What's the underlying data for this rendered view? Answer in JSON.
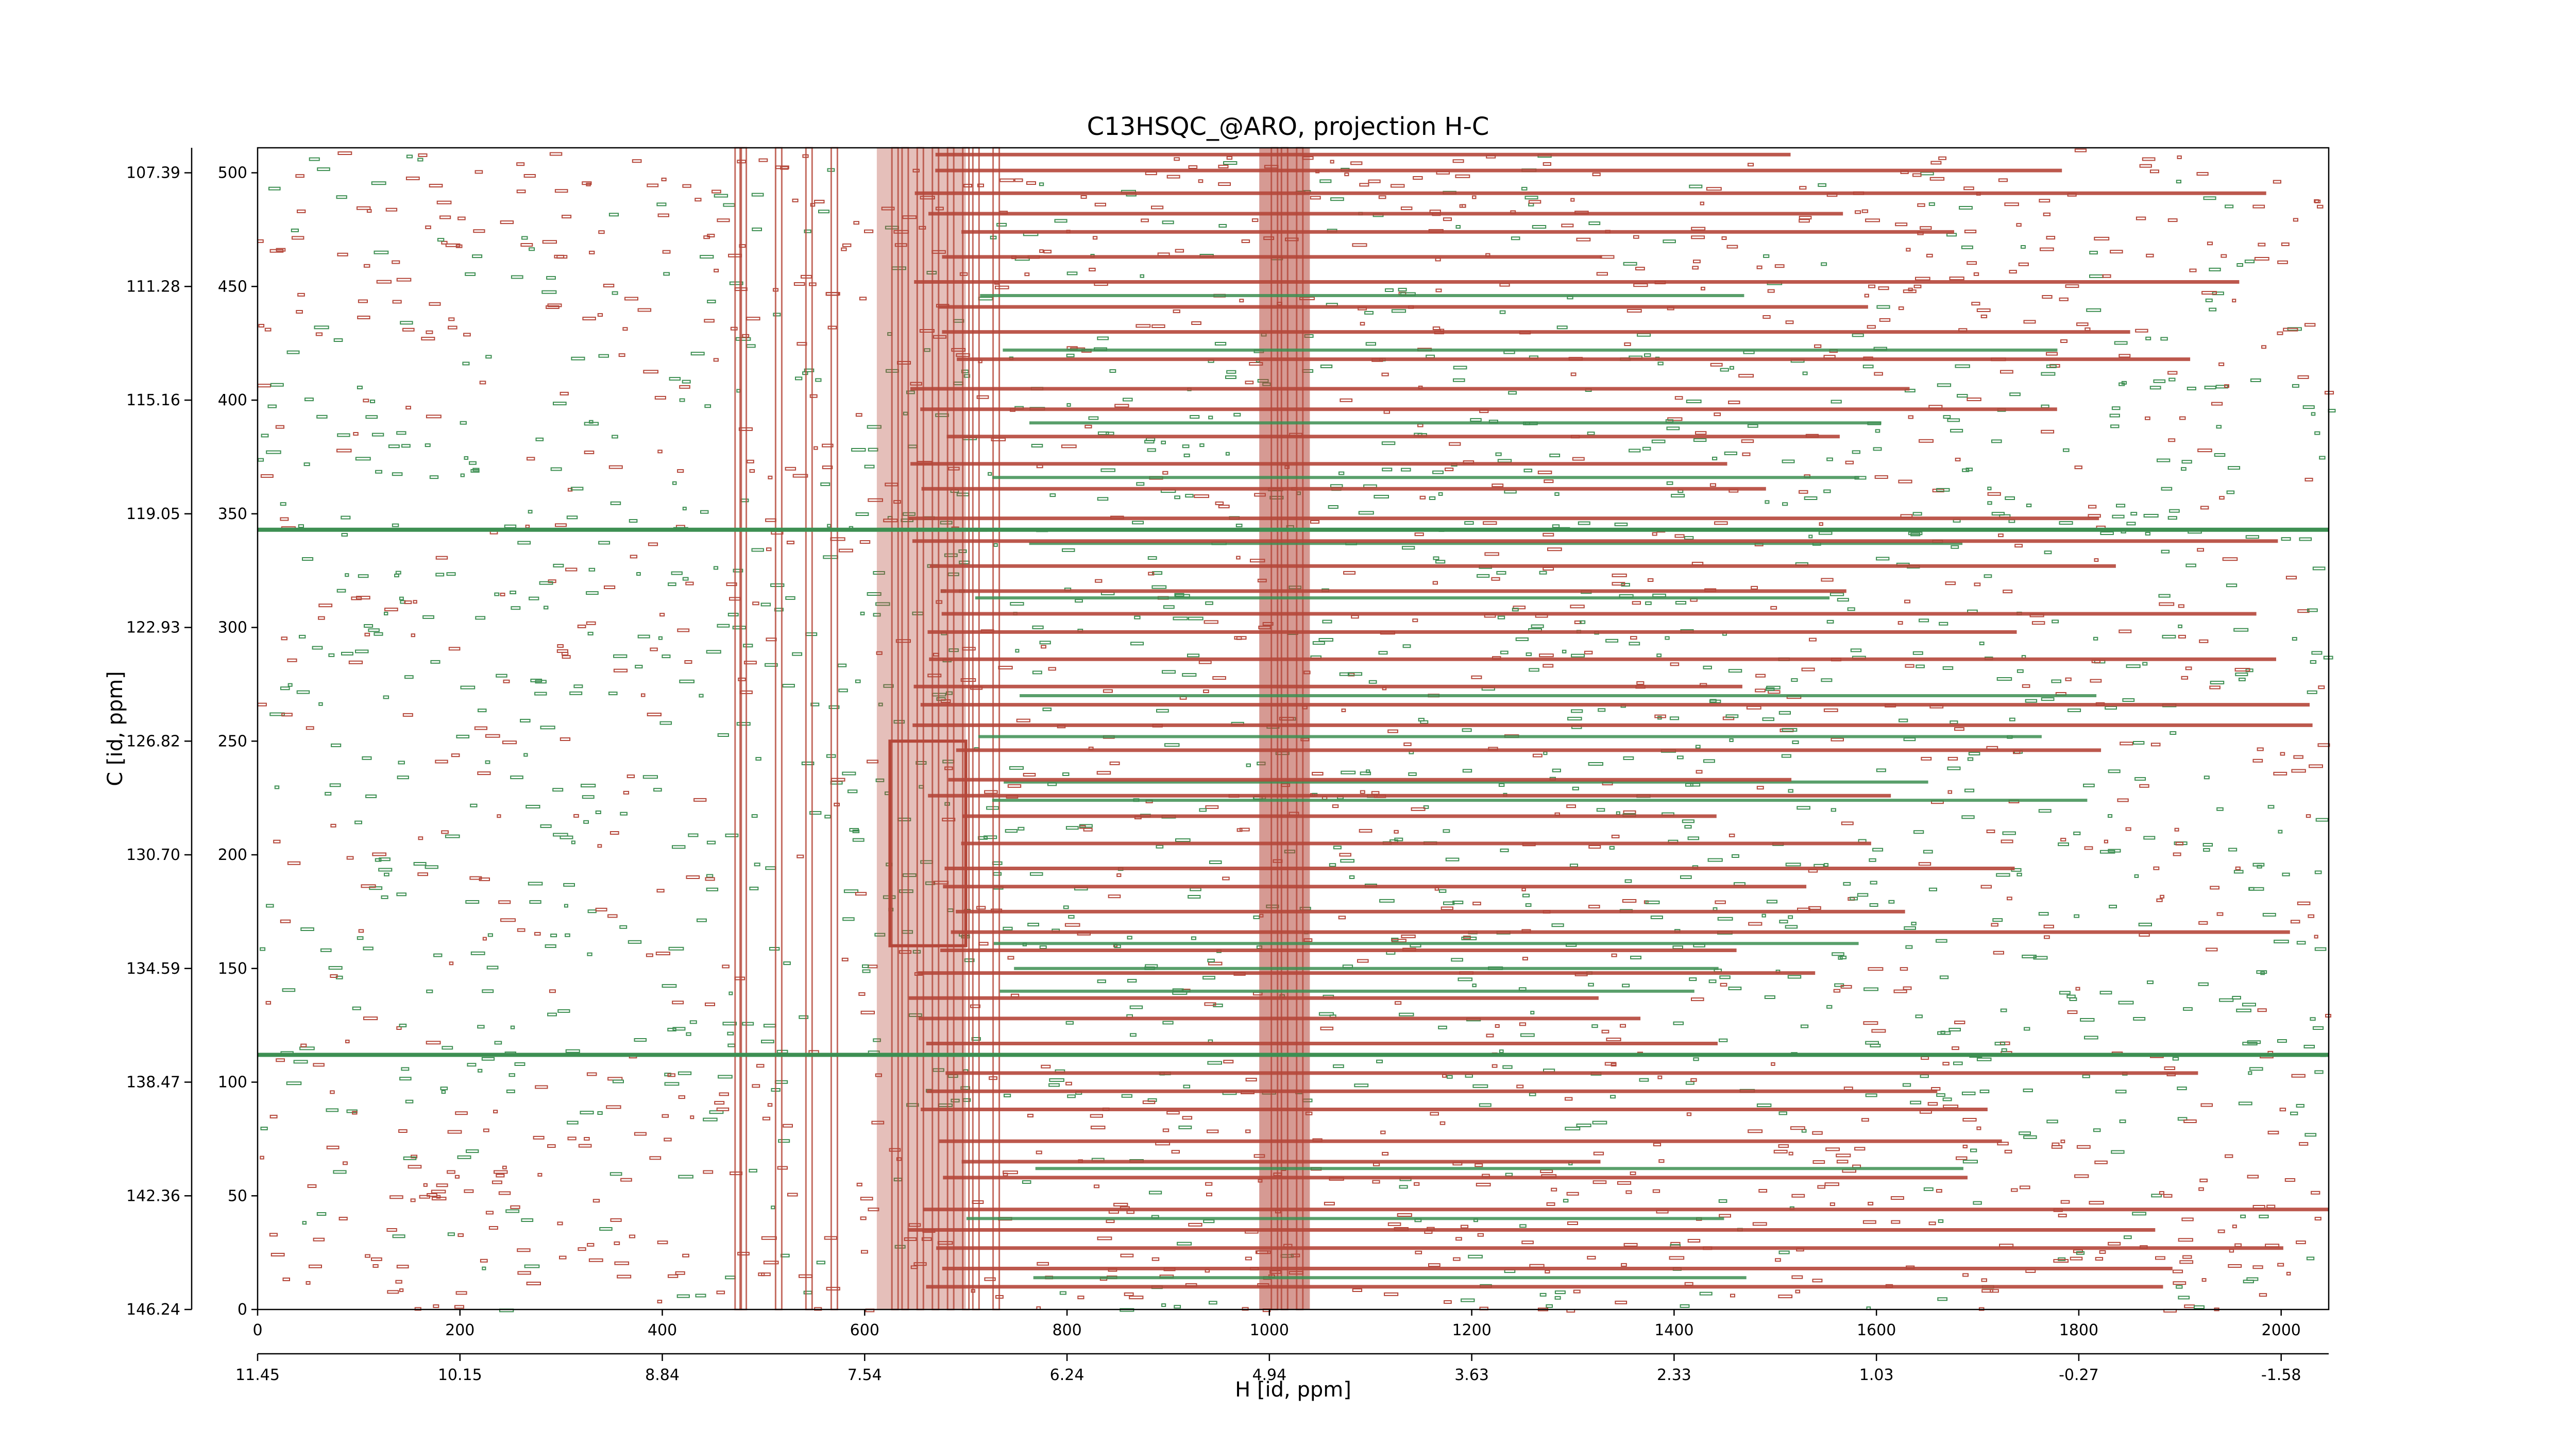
{
  "chart_data": {
    "type": "heatmap",
    "title": "C13HSQC_@ARO, projection H-C",
    "xlabel": "H [id, ppm]",
    "ylabel": "C [id, ppm]",
    "x_index_range": [
      0,
      2047
    ],
    "y_index_range": [
      0,
      511
    ],
    "x_index_ticks": [
      0,
      200,
      400,
      600,
      800,
      1000,
      1200,
      1400,
      1600,
      1800,
      2000
    ],
    "y_index_ticks": [
      0,
      50,
      100,
      150,
      200,
      250,
      300,
      350,
      400,
      450,
      500
    ],
    "h_ppm_labels": [
      "11.45",
      "10.15",
      "8.84",
      "7.54",
      "6.24",
      "4.94",
      "3.63",
      "2.33",
      "1.03",
      "-0.27",
      "-1.58"
    ],
    "h_ppm_label_index": [
      0,
      200,
      400,
      600,
      800,
      1000,
      1200,
      1400,
      1600,
      1800,
      2000
    ],
    "c_ppm_labels": [
      "146.24",
      "142.36",
      "138.47",
      "134.59",
      "130.70",
      "126.82",
      "122.93",
      "119.05",
      "115.16",
      "111.28",
      "107.39"
    ],
    "c_ppm_label_index": [
      0,
      50,
      100,
      150,
      200,
      250,
      300,
      350,
      400,
      450,
      500
    ],
    "series": [
      {
        "name": "positive",
        "color": "#b5473a"
      },
      {
        "name": "negative",
        "color": "#3d8f52"
      }
    ],
    "positive_row_streaks": [
      10,
      18,
      27,
      35,
      44,
      58,
      65,
      74,
      88,
      96,
      104,
      117,
      128,
      137,
      148,
      158,
      166,
      175,
      186,
      194,
      205,
      217,
      226,
      233,
      246,
      257,
      266,
      274,
      286,
      298,
      306,
      316,
      327,
      338,
      348,
      361,
      372,
      384,
      396,
      405,
      418,
      430,
      441,
      452,
      463,
      474,
      482,
      491,
      501,
      508
    ],
    "negative_row_streaks": [
      14,
      40,
      62,
      112,
      140,
      150,
      161,
      224,
      232,
      252,
      270,
      313,
      337,
      366,
      390,
      422,
      446
    ],
    "positive_column_streaks": [
      475,
      480,
      515,
      545,
      570,
      630,
      640,
      655,
      670,
      685,
      700,
      710,
      730,
      1005,
      1015,
      1030
    ],
    "strong_negative_rows": [
      112,
      343
    ],
    "colors": {
      "positive": "#b5473a",
      "negative": "#3d8f52",
      "axes": "#000000"
    }
  }
}
